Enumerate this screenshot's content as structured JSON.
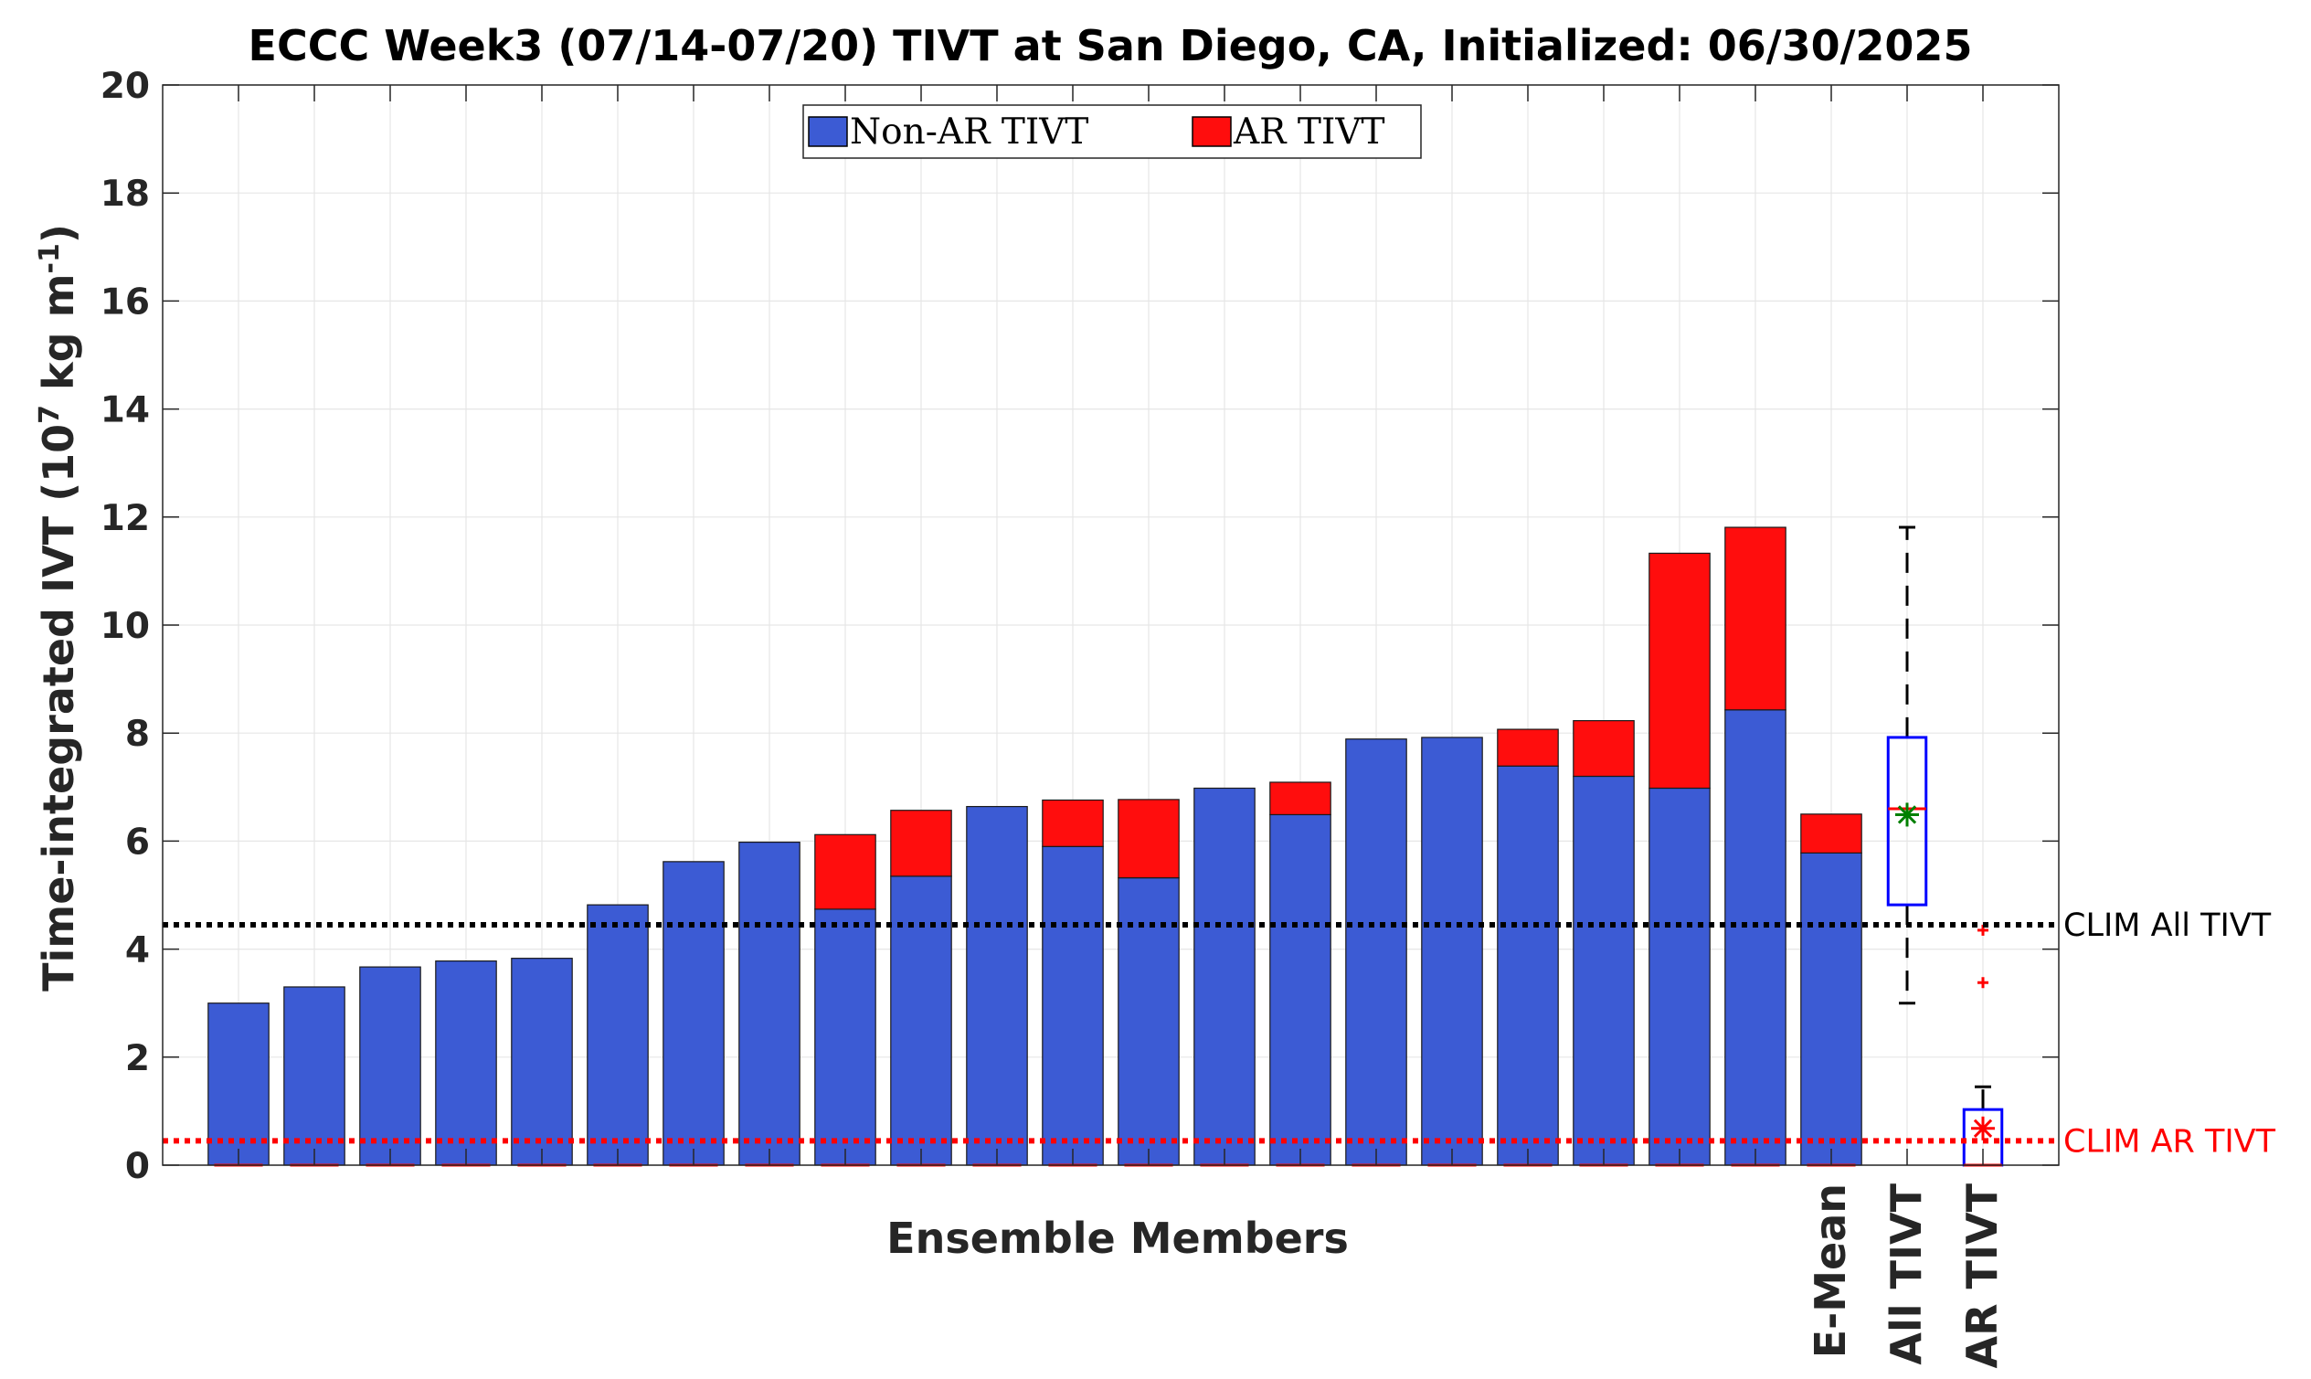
{
  "chart_data": {
    "type": "bar",
    "title": "ECCC Week3 (07/14-07/20) TIVT at San Diego, CA, Initialized: 06/30/2025",
    "xlabel": "Ensemble Members",
    "ylabel": {
      "main": "Time-integrated IVT (10",
      "sup1": "7",
      "mid": " kg m",
      "sup2": "-1",
      "end": ")"
    },
    "ylim": [
      0,
      20
    ],
    "yticks": [
      "0",
      "2",
      "4",
      "6",
      "8",
      "10",
      "12",
      "14",
      "16",
      "18",
      "20"
    ],
    "grid": true,
    "legend_placement": "top-center",
    "series": [
      {
        "name": "Non-AR TIVT",
        "color": "#3c5bd4",
        "values": [
          3.0,
          3.3,
          3.67,
          3.78,
          3.83,
          4.82,
          5.62,
          5.98,
          4.74,
          5.35,
          6.64,
          5.9,
          5.32,
          6.98,
          6.49,
          7.89,
          7.92,
          7.39,
          7.2,
          6.98,
          8.43,
          5.78
        ]
      },
      {
        "name": "AR TIVT",
        "color": "#ff0d0d",
        "values": [
          0,
          0,
          0,
          0,
          0,
          0,
          0,
          0,
          1.38,
          1.22,
          0,
          0.86,
          1.45,
          0,
          0.6,
          0,
          0,
          0.68,
          1.03,
          4.35,
          3.38,
          0.72
        ]
      }
    ],
    "category_labels": [
      "",
      "",
      "",
      "",
      "",
      "",
      "",
      "",
      "",
      "",
      "",
      "",
      "",
      "",
      "",
      "",
      "",
      "",
      "",
      "",
      "",
      "E-Mean"
    ],
    "boxplots": [
      {
        "label": "All TIVT",
        "box_color": "#0000ff",
        "whisker_low": 3.0,
        "q1": 4.82,
        "median": 6.6,
        "q3": 7.92,
        "whisker_high": 11.81,
        "mean": 6.49,
        "mean_color": "#008000",
        "median_color": "#ff0000",
        "outliers": []
      },
      {
        "label": "AR TIVT",
        "box_color": "#0000ff",
        "whisker_low": 0,
        "q1": 0,
        "median": 0,
        "q3": 1.03,
        "whisker_high": 1.45,
        "mean": 0.68,
        "mean_color": "#ff0000",
        "median_color": "#ff0000",
        "outliers": [
          3.38,
          4.35
        ]
      }
    ],
    "reference_lines": [
      {
        "label": "CLIM All TIVT",
        "value": 4.45,
        "color": "#000000"
      },
      {
        "label": "CLIM AR TIVT",
        "value": 0.45,
        "color": "#ff0000"
      }
    ]
  }
}
